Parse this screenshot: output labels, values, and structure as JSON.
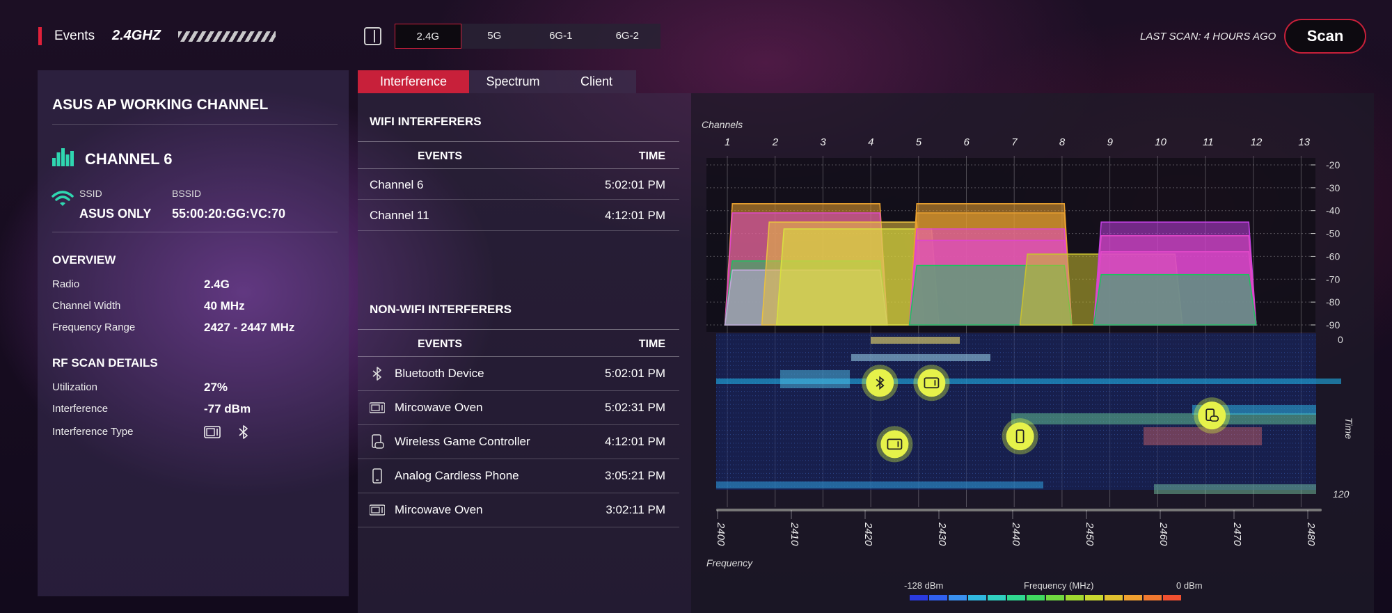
{
  "header": {
    "events_label": "Events",
    "band_title": "2.4GHZ",
    "band_tabs": [
      "2.4G",
      "5G",
      "6G-1",
      "6G-2"
    ],
    "active_band": "2.4G",
    "last_scan": "LAST SCAN: 4 HOURS AGO",
    "scan_label": "Scan",
    "accent": "#c8203a"
  },
  "left_panel": {
    "title": "ASUS AP WORKING CHANNEL",
    "channel": "CHANNEL 6",
    "ssid_label": "SSID",
    "ssid": "ASUS ONLY",
    "bssid_label": "BSSID",
    "bssid": "55:00:20:GG:VC:70",
    "overview_title": "OVERVIEW",
    "overview": [
      {
        "label": "Radio",
        "value": "2.4G"
      },
      {
        "label": "Channel Width",
        "value": "40 MHz"
      },
      {
        "label": "Frequency Range",
        "value": "2427 - 2447 MHz"
      }
    ],
    "rf_title": "RF SCAN DETAILS",
    "rf": [
      {
        "label": "Utilization",
        "value": "27%"
      },
      {
        "label": "Interference",
        "value": "-77 dBm"
      }
    ],
    "interference_type_label": "Interference Type",
    "interference_type_icons": [
      "microwave-icon",
      "bluetooth-icon"
    ],
    "icon_color": "#2fd6b0"
  },
  "view_tabs": [
    "Interference",
    "Spectrum",
    "Client"
  ],
  "active_view": "Interference",
  "wifi_interferers": {
    "title": "WIFI INTERFERERS",
    "col_events": "EVENTS",
    "col_time": "TIME",
    "rows": [
      {
        "event": "Channel 6",
        "time": "5:02:01 PM"
      },
      {
        "event": "Channel 11",
        "time": "4:12:01 PM"
      }
    ]
  },
  "non_wifi_interferers": {
    "title": "NON-WIFI INTERFERERS",
    "col_events": "EVENTS",
    "col_time": "TIME",
    "rows": [
      {
        "icon": "bluetooth-icon",
        "event": "Bluetooth Device",
        "time": "5:02:01 PM"
      },
      {
        "icon": "microwave-icon",
        "event": "Mircowave Oven",
        "time": "5:02:31 PM"
      },
      {
        "icon": "game-controller-icon",
        "event": "Wireless Game Controller",
        "time": "4:12:01 PM"
      },
      {
        "icon": "phone-icon",
        "event": "Analog Cardless Phone",
        "time": "3:05:21 PM"
      },
      {
        "icon": "microwave-icon",
        "event": "Mircowave Oven",
        "time": "3:02:11 PM"
      }
    ]
  },
  "chart_data": {
    "type": "area",
    "channels_label": "Channels",
    "channels": [
      "1",
      "2",
      "3",
      "4",
      "5",
      "6",
      "7",
      "8",
      "9",
      "10",
      "11",
      "12",
      "13"
    ],
    "dbm_ticks": [
      "-20",
      "-30",
      "-40",
      "-50",
      "-60",
      "-70",
      "-80",
      "-90"
    ],
    "ylim": [
      -90,
      -20
    ],
    "frequency_label": "Frequency",
    "frequency_ticks": [
      "2400",
      "2410",
      "2420",
      "2430",
      "2440",
      "2450",
      "2460",
      "2470",
      "2480"
    ],
    "xlim": [
      2400,
      2480
    ],
    "time_label": "Time",
    "time_ticks": [
      "0",
      "120"
    ],
    "signals": [
      {
        "center": 2412,
        "level": -37,
        "color": "#e8a030"
      },
      {
        "center": 2412,
        "level": -41,
        "color": "#e048c8"
      },
      {
        "center": 2412,
        "level": -62,
        "color": "#20c060"
      },
      {
        "center": 2412,
        "level": -66,
        "color": "#c0a8d8"
      },
      {
        "center": 2417,
        "level": -45,
        "color": "#e8c040"
      },
      {
        "center": 2419,
        "level": -48,
        "color": "#d8e040"
      },
      {
        "center": 2437,
        "level": -37,
        "color": "#e8a030"
      },
      {
        "center": 2437,
        "level": -41,
        "color": "#e8a030"
      },
      {
        "center": 2437,
        "level": -48,
        "color": "#e048c8"
      },
      {
        "center": 2437,
        "level": -53,
        "color": "#e048c8"
      },
      {
        "center": 2437,
        "level": -64,
        "color": "#20c060"
      },
      {
        "center": 2452,
        "level": -59,
        "color": "#c8c030"
      },
      {
        "center": 2462,
        "level": -45,
        "color": "#c040e0"
      },
      {
        "center": 2462,
        "level": -51,
        "color": "#e048c8"
      },
      {
        "center": 2462,
        "level": -58,
        "color": "#e048c8"
      },
      {
        "center": 2462,
        "level": -68,
        "color": "#20c060"
      }
    ],
    "waterfall_devices": [
      {
        "icon": "bluetooth-icon",
        "freq": 2422,
        "time": 38
      },
      {
        "icon": "microwave-icon",
        "freq": 2429,
        "time": 38
      },
      {
        "icon": "game-controller-icon",
        "freq": 2467,
        "time": 63
      },
      {
        "icon": "phone-icon",
        "freq": 2441,
        "time": 79
      },
      {
        "icon": "microwave-icon",
        "freq": 2424,
        "time": 85
      }
    ],
    "legend_min": "-128 dBm",
    "legend_title": "Frequency (MHz)",
    "legend_max": "0 dBm",
    "legend_colors": [
      "#2a3ae0",
      "#3060f0",
      "#3a90f0",
      "#30b8e0",
      "#30d0c0",
      "#30d890",
      "#40d860",
      "#70d840",
      "#a0d830",
      "#c8d830",
      "#e0c030",
      "#f0a030",
      "#f07830",
      "#f05030"
    ]
  }
}
